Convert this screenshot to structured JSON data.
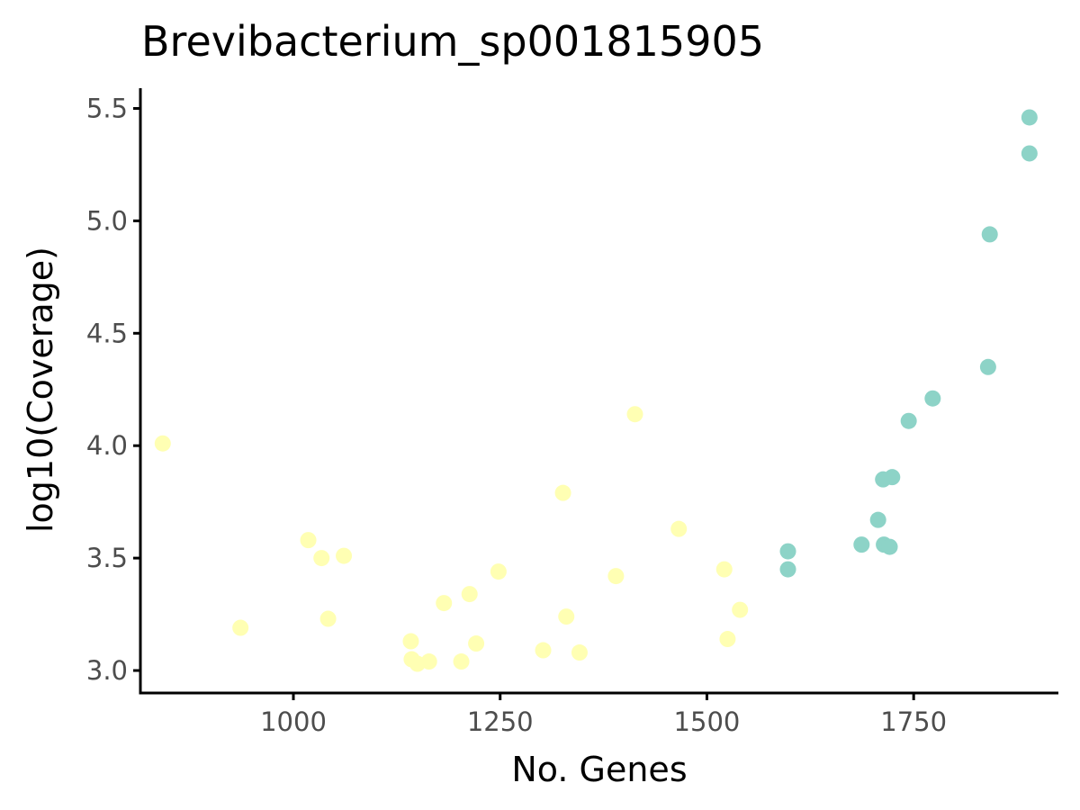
{
  "chart_data": {
    "type": "scatter",
    "title": "Brevibacterium_sp001815905",
    "xlabel": "No. Genes",
    "ylabel": "log10(Coverage)",
    "xlim": [
      815,
      1925
    ],
    "ylim": [
      2.9,
      5.59
    ],
    "x_ticks": [
      1000,
      1250,
      1500,
      1750
    ],
    "y_ticks": [
      3.0,
      3.5,
      4.0,
      4.5,
      5.0,
      5.5
    ],
    "x_tick_labels": [
      "1000",
      "1250",
      "1500",
      "1750"
    ],
    "y_tick_labels": [
      "3.0",
      "3.5",
      "4.0",
      "4.5",
      "5.0",
      "5.5"
    ],
    "grid": false,
    "legend": "none",
    "colors": {
      "group_a": "#ffffb3",
      "group_b": "#8dd3c7"
    },
    "series": [
      {
        "color_key": "group_a",
        "points": [
          [
            842,
            4.01
          ],
          [
            936,
            3.19
          ],
          [
            1018,
            3.58
          ],
          [
            1034,
            3.5
          ],
          [
            1042,
            3.23
          ],
          [
            1061,
            3.51
          ],
          [
            1142,
            3.13
          ],
          [
            1143,
            3.05
          ],
          [
            1150,
            3.03
          ],
          [
            1164,
            3.04
          ],
          [
            1182,
            3.3
          ],
          [
            1203,
            3.04
          ],
          [
            1213,
            3.34
          ],
          [
            1221,
            3.12
          ],
          [
            1248,
            3.44
          ],
          [
            1302,
            3.09
          ],
          [
            1326,
            3.79
          ],
          [
            1330,
            3.24
          ],
          [
            1346,
            3.08
          ],
          [
            1390,
            3.42
          ],
          [
            1413,
            4.14
          ],
          [
            1466,
            3.63
          ],
          [
            1521,
            3.45
          ],
          [
            1525,
            3.14
          ],
          [
            1540,
            3.27
          ]
        ]
      },
      {
        "color_key": "group_b",
        "points": [
          [
            1598,
            3.53
          ],
          [
            1598,
            3.45
          ],
          [
            1687,
            3.56
          ],
          [
            1707,
            3.67
          ],
          [
            1713,
            3.85
          ],
          [
            1714,
            3.56
          ],
          [
            1721,
            3.55
          ],
          [
            1724,
            3.86
          ],
          [
            1744,
            4.11
          ],
          [
            1773,
            4.21
          ],
          [
            1840,
            4.35
          ],
          [
            1842,
            4.94
          ],
          [
            1890,
            5.46
          ],
          [
            1890,
            5.3
          ]
        ]
      }
    ]
  }
}
